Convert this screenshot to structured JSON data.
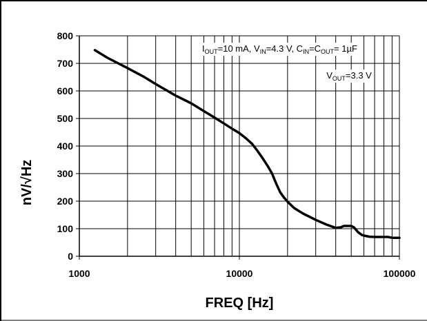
{
  "chart_data": {
    "type": "line",
    "title": "",
    "xlabel": "FREQ [Hz]",
    "ylabel": "nV/√Hz",
    "x_scale": "log",
    "xlim": [
      1000,
      100000
    ],
    "ylim": [
      0,
      800
    ],
    "x_ticks": [
      1000,
      10000,
      100000
    ],
    "x_tick_labels": [
      "1000",
      "10000",
      "100000"
    ],
    "y_ticks": [
      0,
      100,
      200,
      300,
      400,
      500,
      600,
      700,
      800
    ],
    "y_tick_labels": [
      "0",
      "100",
      "200",
      "300",
      "400",
      "500",
      "600",
      "700",
      "800"
    ],
    "grid": true,
    "annotations": [
      {
        "text": "IOUT=10 mA, VIN=4.3 V, CIN=COUT= 1µF",
        "parts": [
          {
            "t": "I",
            "sub": false
          },
          {
            "t": "OUT",
            "sub": true
          },
          {
            "t": "=10 mA, V",
            "sub": false
          },
          {
            "t": "IN",
            "sub": true
          },
          {
            "t": "=4.3 V, C",
            "sub": false
          },
          {
            "t": "IN",
            "sub": true
          },
          {
            "t": "=C",
            "sub": false
          },
          {
            "t": "OUT",
            "sub": true
          },
          {
            "t": "= 1µF",
            "sub": false
          }
        ],
        "anchor_x": 1000,
        "anchor_y": 760
      },
      {
        "text": "VOUT=3.3 V",
        "parts": [
          {
            "t": "V",
            "sub": false
          },
          {
            "t": "OUT",
            "sub": true
          },
          {
            "t": "=3.3 V",
            "sub": false
          }
        ],
        "anchor_x": 35000,
        "anchor_y": 645
      }
    ],
    "series": [
      {
        "color": "#000000",
        "x": [
          1250,
          1500,
          2000,
          2500,
          3000,
          4000,
          5000,
          6000,
          7000,
          8000,
          9000,
          10000,
          11000,
          12000,
          13000,
          14000,
          15000,
          16000,
          17000,
          18000,
          19000,
          20000,
          22000,
          25000,
          30000,
          35000,
          40000,
          43000,
          45000,
          50000,
          52000,
          55000,
          58000,
          60000,
          65000,
          70000,
          80000,
          85000,
          90000,
          100000
        ],
        "y": [
          748,
          720,
          683,
          653,
          625,
          583,
          555,
          527,
          503,
          482,
          463,
          447,
          428,
          408,
          382,
          355,
          328,
          300,
          263,
          232,
          213,
          198,
          175,
          155,
          132,
          115,
          103,
          105,
          110,
          110,
          105,
          88,
          78,
          75,
          71,
          70,
          70,
          70,
          67,
          67
        ]
      }
    ]
  }
}
